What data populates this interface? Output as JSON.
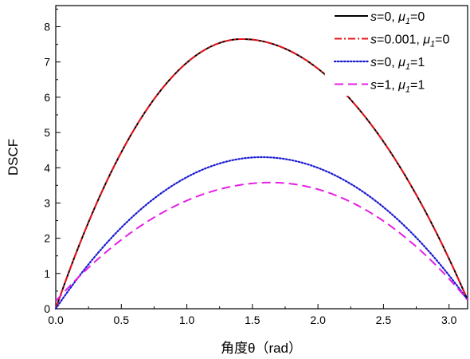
{
  "chart_data": {
    "type": "line",
    "xlabel": "角度θ（rad）",
    "ylabel": "DSCF",
    "xlim": [
      0.0,
      3.1416
    ],
    "ylim": [
      0,
      8.6
    ],
    "xticks": [
      "0.0",
      "0.5",
      "1.0",
      "1.5",
      "2.0",
      "2.5",
      "3.0"
    ],
    "yticks": [
      "0",
      "1",
      "2",
      "3",
      "4",
      "5",
      "6",
      "7",
      "8"
    ],
    "legend_position": "top-right",
    "series": [
      {
        "name": "s=0, μ1=0",
        "label_parts": [
          "s",
          "=0, ",
          "μ",
          "1",
          "=0"
        ],
        "color": "#000000",
        "style": "solid",
        "peak": 7.65,
        "peak_x": 1.42,
        "start": 0.0,
        "end": 0.25
      },
      {
        "name": "s=0.001, μ1=0",
        "label_parts": [
          "s",
          "=0.001, ",
          "μ",
          "1",
          "=0"
        ],
        "color": "#e8141b",
        "style": "dashdot",
        "peak": 7.65,
        "peak_x": 1.42,
        "start": 0.0,
        "end": 0.25
      },
      {
        "name": "s=0, μ1=1",
        "label_parts": [
          "s",
          "=0, ",
          "μ",
          "1",
          "=1"
        ],
        "color": "#1a1ad2",
        "style": "dotted",
        "peak": 4.3,
        "peak_x": 1.57,
        "start": 0.0,
        "end": 0.25
      },
      {
        "name": "s=1, μ1=1",
        "label_parts": [
          "s",
          "=1, ",
          "μ",
          "1",
          "=1"
        ],
        "color": "#e61ee6",
        "style": "dashed",
        "peak": 3.58,
        "peak_x": 1.64,
        "start": 0.22,
        "end": 0.25
      }
    ]
  }
}
